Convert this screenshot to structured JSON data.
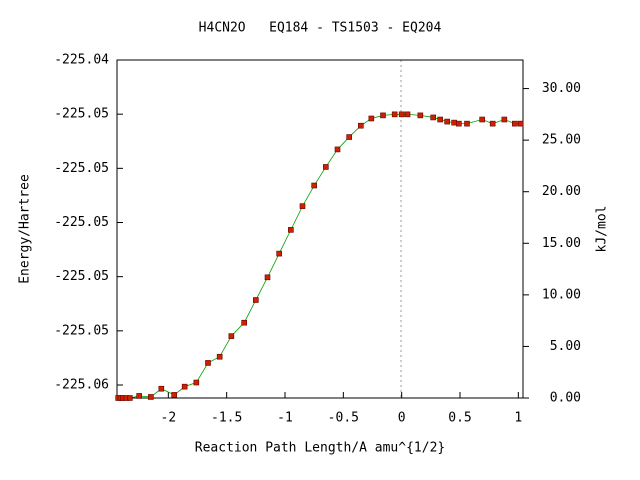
{
  "chart_data": {
    "type": "line",
    "title": "H4CN2O   EQ184 - TS1503 - EQ204",
    "xlabel": "Reaction Path Length/A amu^{1/2}",
    "ylabel": "Energy/Hartree",
    "y2label": "kJ/mol",
    "xlim": [
      -2.44,
      1.04
    ],
    "xticks": [
      -2,
      -1.5,
      -1,
      -0.5,
      0,
      0.5,
      1
    ],
    "ylim": [
      -225.05598,
      -225.0435
    ],
    "yticks": [
      {
        "value": -225.0555,
        "label": "-225.06"
      },
      {
        "value": -225.0535,
        "label": "-225.05"
      },
      {
        "value": -225.0515,
        "label": "-225.05"
      },
      {
        "value": -225.0495,
        "label": "-225.05"
      },
      {
        "value": -225.0475,
        "label": "-225.05"
      },
      {
        "value": -225.0455,
        "label": "-225.05"
      },
      {
        "value": -225.0435,
        "label": "-225.04"
      }
    ],
    "y2lim": [
      0,
      32.77
    ],
    "y2ticks": [
      {
        "value": 0,
        "label": "0.00"
      },
      {
        "value": 5,
        "label": "5.00"
      },
      {
        "value": 10,
        "label": "10.00"
      },
      {
        "value": 15,
        "label": "15.00"
      },
      {
        "value": 20,
        "label": "20.00"
      },
      {
        "value": 25,
        "label": "25.00"
      },
      {
        "value": 30,
        "label": "30.00"
      }
    ],
    "x": [
      -2.43,
      -2.41,
      -2.39,
      -2.36,
      -2.33,
      -2.25,
      -2.15,
      -2.06,
      -1.95,
      -1.86,
      -1.76,
      -1.66,
      -1.56,
      -1.46,
      -1.35,
      -1.25,
      -1.15,
      -1.05,
      -0.95,
      -0.85,
      -0.75,
      -0.65,
      -0.55,
      -0.45,
      -0.35,
      -0.26,
      -0.16,
      -0.06,
      0,
      0.05,
      0.16,
      0.27,
      0.33,
      0.39,
      0.45,
      0.49,
      0.56,
      0.69,
      0.78,
      0.88,
      0.97,
      1.02
    ],
    "series": [
      {
        "color": "#00a000",
        "marker_color": "#cc2200",
        "axis": "y2",
        "values": [
          0,
          0,
          0,
          0,
          0,
          0.2,
          0.1,
          0.9,
          0.3,
          1.1,
          1.5,
          3.4,
          4.0,
          6.0,
          7.3,
          9.5,
          11.7,
          14.0,
          16.3,
          18.6,
          20.6,
          22.4,
          24.1,
          25.3,
          26.4,
          27.1,
          27.4,
          27.5,
          27.5,
          27.5,
          27.4,
          27.2,
          27.0,
          26.8,
          26.7,
          26.6,
          26.6,
          27.0,
          26.6,
          27.0,
          26.6,
          26.6
        ]
      }
    ]
  }
}
